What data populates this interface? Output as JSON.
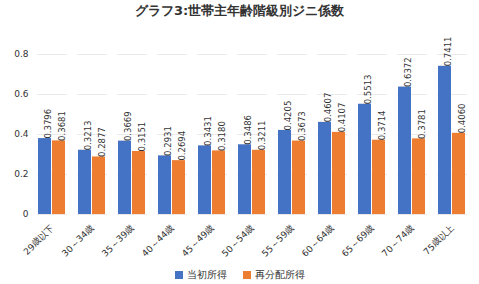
{
  "chart_data": {
    "type": "bar",
    "title": "グラフ3:世帯主年齢階級別ジニ係数",
    "categories": [
      "29歳以下",
      "30～34歳",
      "35～39歳",
      "40～44歳",
      "45～49歳",
      "50～54歳",
      "55～59歳",
      "60～64歳",
      "65～69歳",
      "70～74歳",
      "75歳以上"
    ],
    "series": [
      {
        "name": "当初所得",
        "color": "#4472c4",
        "values": [
          0.3796,
          0.3213,
          0.3669,
          0.2931,
          0.3431,
          0.3486,
          0.4205,
          0.4607,
          0.5513,
          0.6372,
          0.7411
        ],
        "value_labels": [
          "0.3796",
          "0.3213",
          "0.3669",
          "0.2931",
          "0.3431",
          "0.3486",
          "0.4205",
          "0.4607",
          "0.5513",
          "0.6372",
          "0.7411"
        ]
      },
      {
        "name": "再分配所得",
        "color": "#ed7d31",
        "values": [
          0.3681,
          0.2877,
          0.3151,
          0.2694,
          0.318,
          0.3211,
          0.3673,
          0.4107,
          0.3714,
          0.3781,
          0.406
        ],
        "value_labels": [
          "0.3681",
          "0.2877",
          "0.3151",
          "0.2694",
          "0.3180",
          "0.3211",
          "0.3673",
          "0.4107",
          "0.3714",
          "0.3781",
          "0.4060"
        ]
      }
    ],
    "ylim": [
      0,
      0.8
    ],
    "yticks": [
      0,
      0.2,
      0.4,
      0.6,
      0.8
    ],
    "grid": true,
    "legend": "bottom",
    "data_labels": true
  }
}
